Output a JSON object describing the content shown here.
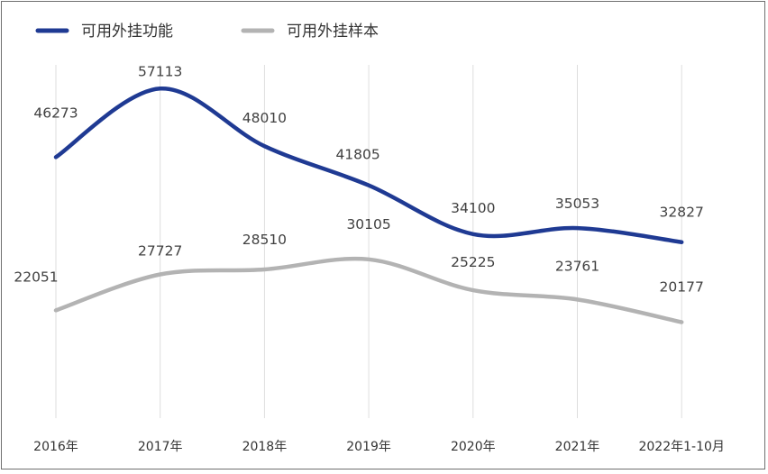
{
  "chart_data": {
    "type": "line",
    "categories": [
      "2016年",
      "2017年",
      "2018年",
      "2019年",
      "2020年",
      "2021年",
      "2022年1-10月"
    ],
    "series": [
      {
        "name": "可用外挂功能",
        "values": [
          46273,
          57113,
          48010,
          41805,
          34100,
          35053,
          32827
        ],
        "color": "#1f3a93"
      },
      {
        "name": "可用外挂样本",
        "values": [
          22051,
          27727,
          28510,
          30105,
          25225,
          23761,
          20177
        ],
        "color": "#b3b3b3"
      }
    ],
    "title": "",
    "xlabel": "",
    "ylabel": "",
    "ylim": [
      5000,
      62000
    ],
    "grid": "vertical",
    "legend": "top-left",
    "smooth": true
  }
}
